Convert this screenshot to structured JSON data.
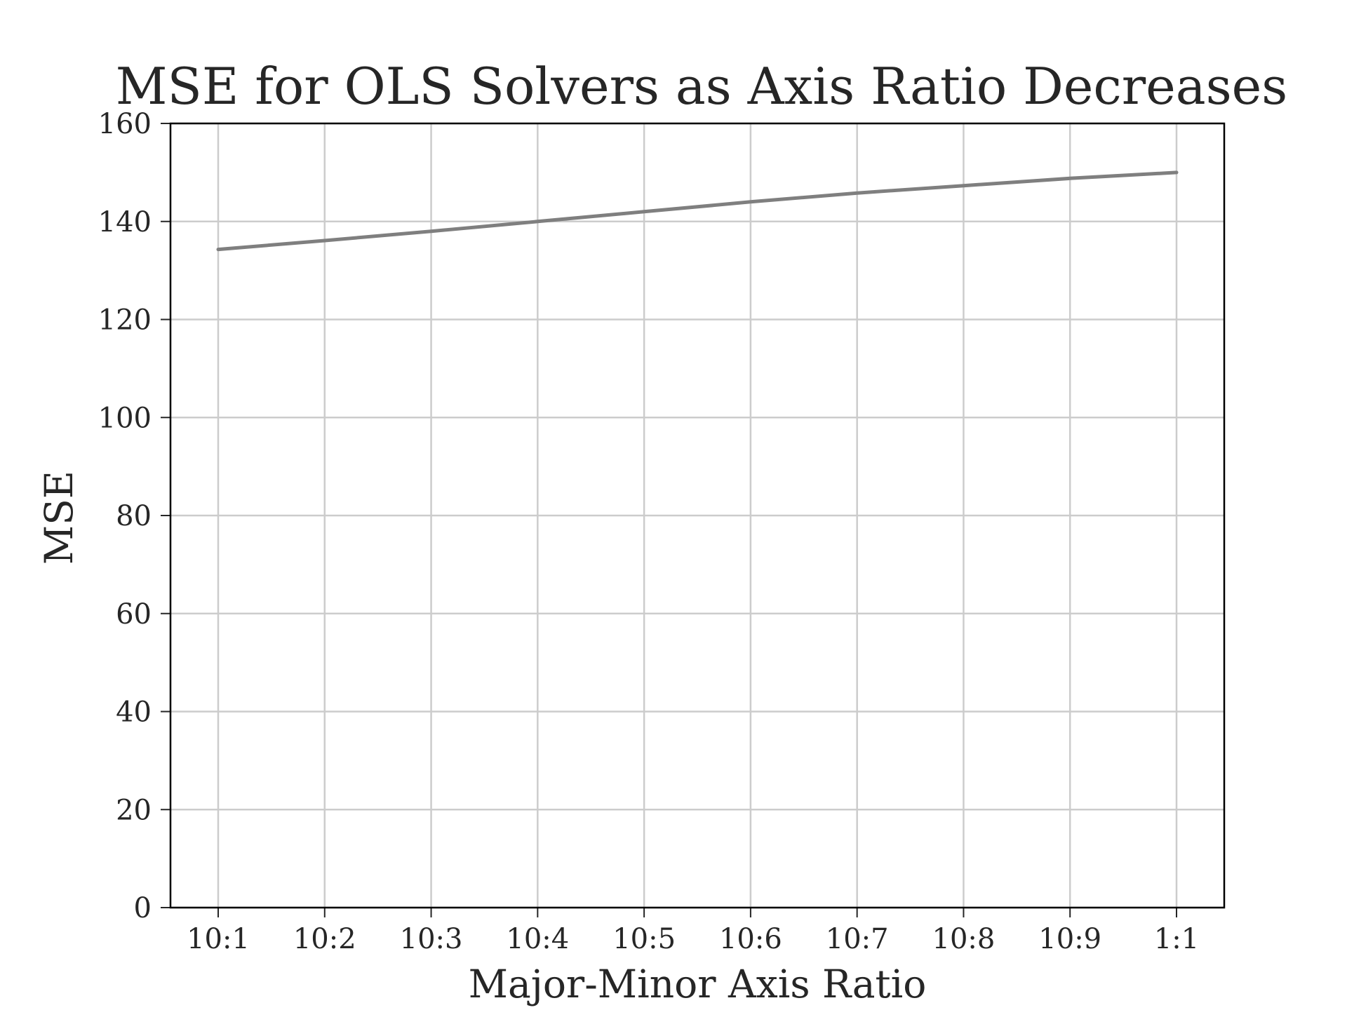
{
  "chart_data": {
    "type": "line",
    "title": "MSE for OLS Solvers as Axis Ratio Decreases",
    "xlabel": "Major-Minor Axis Ratio",
    "ylabel": "MSE",
    "categories": [
      "10:1",
      "10:2",
      "10:3",
      "10:4",
      "10:5",
      "10:6",
      "10:7",
      "10:8",
      "10:9",
      "1:1"
    ],
    "series": [
      {
        "color": "#7f7f7f",
        "values": [
          134.3,
          136.1,
          138.0,
          140.0,
          142.0,
          144.0,
          145.8,
          147.3,
          148.8,
          150.0
        ]
      }
    ],
    "ylim": [
      0,
      160
    ],
    "yticks": [
      0,
      20,
      40,
      60,
      80,
      100,
      120,
      140,
      160
    ],
    "grid": true,
    "legend": "none"
  }
}
